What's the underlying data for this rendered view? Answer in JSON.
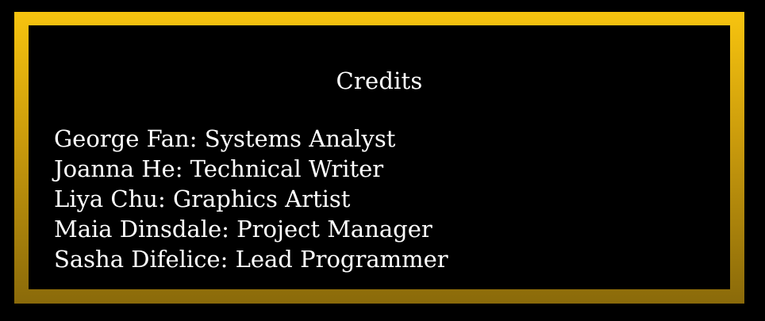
{
  "window": {
    "title": "Credits"
  },
  "credits": [
    "George Fan: Systems Analyst",
    "Joanna He: Technical Writer",
    "Liya Chu: Graphics Artist",
    "Maia Dinsdale: Project Manager",
    "Sasha Difelice: Lead Programmer"
  ],
  "colors": {
    "background": "#000000",
    "frame_top": "#f7c40f",
    "frame_bottom": "#8a6a0a",
    "text": "#ffffff"
  }
}
